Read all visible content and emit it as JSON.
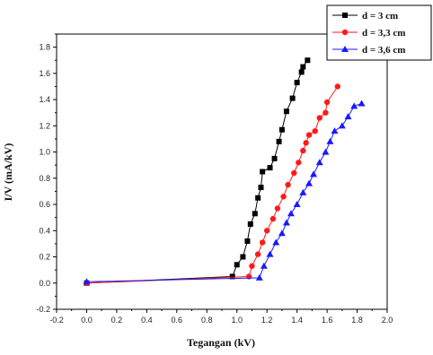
{
  "chart_data": {
    "type": "line",
    "xlabel": "Tegangan (kV)",
    "ylabel": "I/V (mA/kV)",
    "xlim": [
      -0.2,
      2.0
    ],
    "ylim": [
      -0.2,
      1.9
    ],
    "x_ticks": [
      -0.2,
      0.0,
      0.2,
      0.4,
      0.6,
      0.8,
      1.0,
      1.2,
      1.4,
      1.6,
      1.8,
      2.0
    ],
    "y_ticks": [
      -0.2,
      0.0,
      0.2,
      0.4,
      0.6,
      0.8,
      1.0,
      1.2,
      1.4,
      1.6,
      1.8
    ],
    "x_tick_labels": [
      "-0.2",
      "0.0",
      "0.2",
      "0.4",
      "0.6",
      "0.8",
      "1.0",
      "1.2",
      "1.4",
      "1.6",
      "1.8",
      "2.0"
    ],
    "y_tick_labels": [
      "-0.2",
      "0.0",
      "0.2",
      "0.4",
      "0.6",
      "0.8",
      "1.0",
      "1.2",
      "1.4",
      "1.6",
      "1.8"
    ],
    "grid": false,
    "legend_position": "top-right",
    "series": [
      {
        "name": "d = 3 cm",
        "color": "#000000",
        "marker": "square",
        "points": [
          [
            0.0,
            0.0
          ],
          [
            0.97,
            0.05
          ],
          [
            1.0,
            0.14
          ],
          [
            1.04,
            0.2
          ],
          [
            1.07,
            0.32
          ],
          [
            1.09,
            0.45
          ],
          [
            1.12,
            0.53
          ],
          [
            1.14,
            0.65
          ],
          [
            1.16,
            0.73
          ],
          [
            1.17,
            0.85
          ],
          [
            1.22,
            0.88
          ],
          [
            1.25,
            0.95
          ],
          [
            1.28,
            1.08
          ],
          [
            1.3,
            1.17
          ],
          [
            1.33,
            1.31
          ],
          [
            1.37,
            1.41
          ],
          [
            1.4,
            1.53
          ],
          [
            1.43,
            1.61
          ],
          [
            1.44,
            1.65
          ],
          [
            1.47,
            1.7
          ]
        ]
      },
      {
        "name": "d = 3,3 cm",
        "color": "#ff1a1a",
        "marker": "circle",
        "points": [
          [
            0.0,
            0.0
          ],
          [
            1.08,
            0.05
          ],
          [
            1.1,
            0.13
          ],
          [
            1.14,
            0.22
          ],
          [
            1.17,
            0.31
          ],
          [
            1.2,
            0.4
          ],
          [
            1.24,
            0.49
          ],
          [
            1.27,
            0.57
          ],
          [
            1.31,
            0.66
          ],
          [
            1.34,
            0.75
          ],
          [
            1.38,
            0.84
          ],
          [
            1.41,
            0.92
          ],
          [
            1.44,
            1.01
          ],
          [
            1.46,
            1.07
          ],
          [
            1.48,
            1.13
          ],
          [
            1.52,
            1.16
          ],
          [
            1.55,
            1.26
          ],
          [
            1.59,
            1.3
          ],
          [
            1.6,
            1.38
          ],
          [
            1.67,
            1.5
          ]
        ]
      },
      {
        "name": "d = 3,6 cm",
        "color": "#1a1aff",
        "marker": "triangle",
        "points": [
          [
            0.0,
            0.01
          ],
          [
            1.15,
            0.04
          ],
          [
            1.18,
            0.13
          ],
          [
            1.22,
            0.22
          ],
          [
            1.26,
            0.31
          ],
          [
            1.3,
            0.38
          ],
          [
            1.33,
            0.46
          ],
          [
            1.36,
            0.53
          ],
          [
            1.4,
            0.6
          ],
          [
            1.44,
            0.69
          ],
          [
            1.48,
            0.76
          ],
          [
            1.51,
            0.83
          ],
          [
            1.55,
            0.92
          ],
          [
            1.59,
            1.0
          ],
          [
            1.62,
            1.08
          ],
          [
            1.65,
            1.16
          ],
          [
            1.7,
            1.2
          ],
          [
            1.74,
            1.27
          ],
          [
            1.78,
            1.35
          ],
          [
            1.83,
            1.37
          ]
        ]
      }
    ]
  }
}
